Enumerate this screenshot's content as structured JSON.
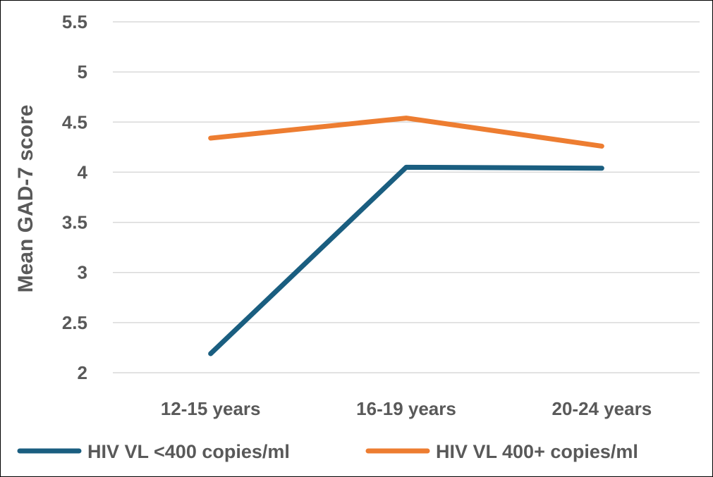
{
  "chart_data": {
    "type": "line",
    "title": "",
    "xlabel": "",
    "ylabel": "Mean  GAD-7 score",
    "categories": [
      "12-15 years",
      "16-19 years",
      "20-24 years"
    ],
    "ylim": [
      2,
      5.5
    ],
    "yticks": [
      "2",
      "2.5",
      "3",
      "3.5",
      "4",
      "4.5",
      "5",
      "5.5"
    ],
    "grid": true,
    "legend_position": "bottom",
    "series": [
      {
        "name": "HIV VL <400 copies/ml",
        "values": [
          2.19,
          4.05,
          4.04
        ],
        "color": "#1a5e80"
      },
      {
        "name": "HIV VL 400+ copies/ml",
        "values": [
          4.34,
          4.54,
          4.26
        ],
        "color": "#ed7d31"
      }
    ]
  }
}
